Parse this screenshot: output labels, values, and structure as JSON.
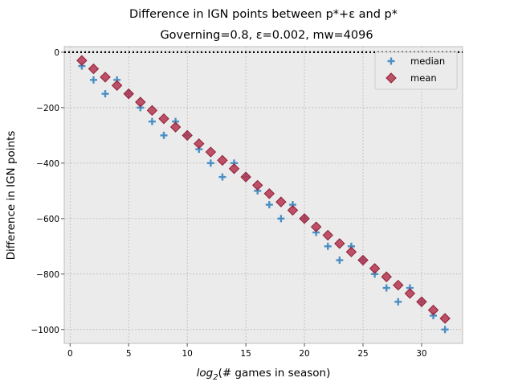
{
  "chart_data": {
    "type": "scatter",
    "title_line1": "Difference in IGN points between p*+ε and p*",
    "title_line2": "Governing=0.8, ε=0.002, mw=4096",
    "xlabel_prefix": "log",
    "xlabel_sub": "2",
    "xlabel_suffix": "(# games in season)",
    "ylabel": "Difference in IGN points",
    "xlim": [
      -0.5,
      33.5
    ],
    "ylim": [
      -1050,
      20
    ],
    "x_ticks": [
      0,
      5,
      10,
      15,
      20,
      25,
      30
    ],
    "x_tick_labels": [
      "0",
      "5",
      "10",
      "15",
      "20",
      "25",
      "30"
    ],
    "y_ticks": [
      0,
      -200,
      -400,
      -600,
      -800,
      -1000
    ],
    "y_tick_labels": [
      "0",
      "−200",
      "−400",
      "−600",
      "−800",
      "−1000"
    ],
    "grid": true,
    "legend_position": "top-right",
    "reference_line": {
      "y": 0,
      "style": "dotted",
      "color": "#000000"
    },
    "series": [
      {
        "name": "median",
        "marker": "plus",
        "color": "#4a8fc4",
        "x": [
          1,
          2,
          3,
          4,
          5,
          6,
          7,
          8,
          9,
          10,
          11,
          12,
          13,
          14,
          15,
          16,
          17,
          18,
          19,
          20,
          21,
          22,
          23,
          24,
          25,
          26,
          27,
          28,
          29,
          30,
          31,
          32
        ],
        "y": [
          -50,
          -100,
          -150,
          -100,
          -150,
          -200,
          -250,
          -300,
          -250,
          -300,
          -350,
          -400,
          -450,
          -400,
          -450,
          -500,
          -550,
          -600,
          -550,
          -600,
          -650,
          -700,
          -750,
          -700,
          -750,
          -800,
          -850,
          -900,
          -850,
          -900,
          -950,
          -1000
        ]
      },
      {
        "name": "mean",
        "marker": "diamond",
        "color": "#b5354f",
        "x": [
          1,
          2,
          3,
          4,
          5,
          6,
          7,
          8,
          9,
          10,
          11,
          12,
          13,
          14,
          15,
          16,
          17,
          18,
          19,
          20,
          21,
          22,
          23,
          24,
          25,
          26,
          27,
          28,
          29,
          30,
          31,
          32
        ],
        "y": [
          -30,
          -60,
          -90,
          -120,
          -150,
          -180,
          -210,
          -240,
          -270,
          -300,
          -330,
          -360,
          -390,
          -420,
          -450,
          -480,
          -510,
          -540,
          -570,
          -600,
          -630,
          -660,
          -690,
          -720,
          -750,
          -780,
          -810,
          -840,
          -870,
          -900,
          -930,
          -960
        ]
      }
    ]
  }
}
